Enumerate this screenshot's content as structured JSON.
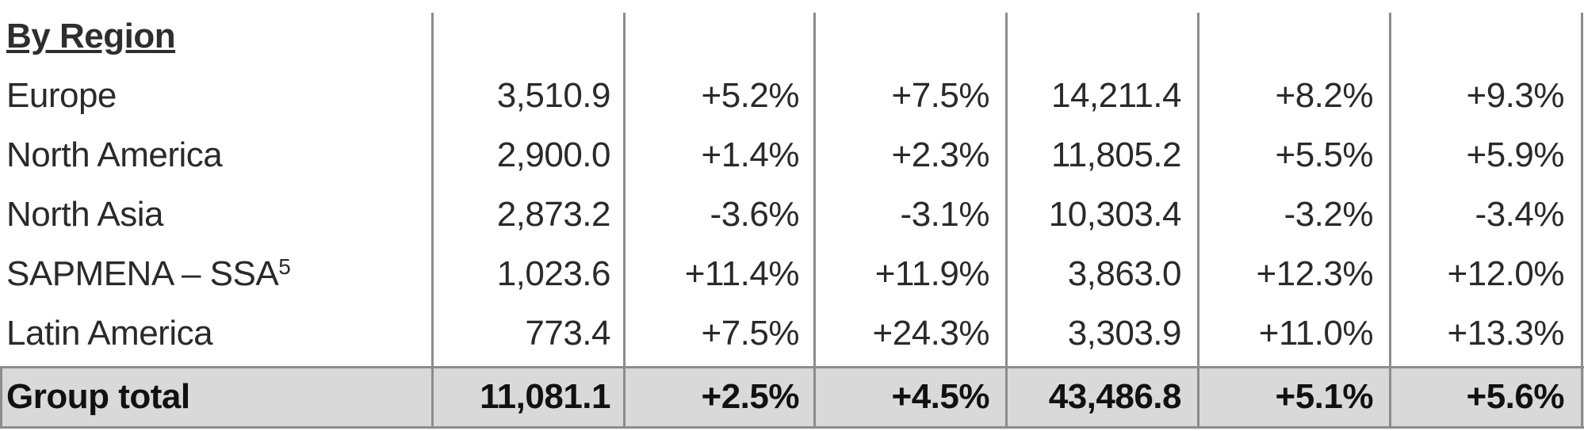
{
  "section_title": "By Region",
  "rows": [
    {
      "label": "Europe",
      "footnote": "",
      "values": [
        "3,510.9",
        "+5.2%",
        "+7.5%",
        "14,211.4",
        "+8.2%",
        "+9.3%"
      ]
    },
    {
      "label": "North America",
      "footnote": "",
      "values": [
        "2,900.0",
        "+1.4%",
        "+2.3%",
        "11,805.2",
        "+5.5%",
        "+5.9%"
      ]
    },
    {
      "label": "North Asia",
      "footnote": "",
      "values": [
        "2,873.2",
        "-3.6%",
        "-3.1%",
        "10,303.4",
        "-3.2%",
        "-3.4%"
      ]
    },
    {
      "label": "SAPMENA – SSA",
      "footnote": "5",
      "values": [
        "1,023.6",
        "+11.4%",
        "+11.9%",
        "3,863.0",
        "+12.3%",
        "+12.0%"
      ]
    },
    {
      "label": "Latin America",
      "footnote": "",
      "values": [
        "773.4",
        "+7.5%",
        "+24.3%",
        "3,303.9",
        "+11.0%",
        "+13.3%"
      ]
    }
  ],
  "total": {
    "label": "Group total",
    "values": [
      "11,081.1",
      "+2.5%",
      "+4.5%",
      "43,486.8",
      "+5.1%",
      "+5.6%"
    ]
  },
  "colors": {
    "grid": "#8c8c8c",
    "total_bg": "#d9d9d9",
    "text": "#2a2a2a"
  }
}
